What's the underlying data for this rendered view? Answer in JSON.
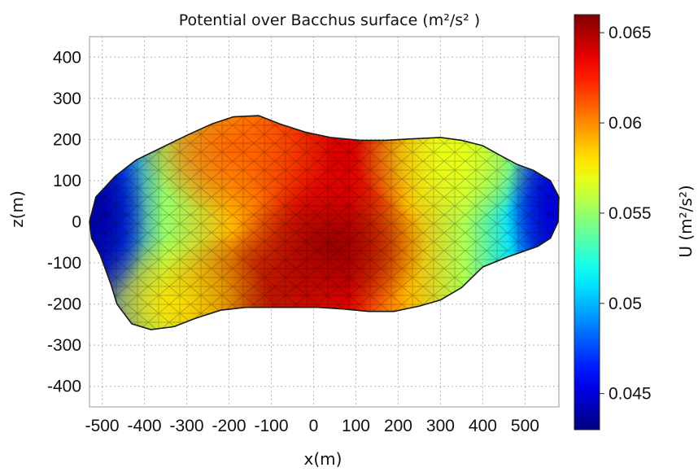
{
  "chart_data": {
    "type": "heatmap",
    "title": "Potential over Bacchus surface (m²/s² )",
    "xlabel": "x(m)",
    "ylabel": "z(m)",
    "colorbar_label": "U (m²/s²)",
    "x_ticks": [
      "-500",
      "-400",
      "-300",
      "-200",
      "-100",
      "0",
      "100",
      "200",
      "300",
      "400",
      "500"
    ],
    "y_ticks": [
      "400",
      "300",
      "200",
      "100",
      "0",
      "-100",
      "-200",
      "-300",
      "-400"
    ],
    "colorbar_ticks": [
      "0.065",
      "0.06",
      "0.055",
      "0.05",
      "0.045"
    ],
    "xlim": [
      -530,
      580
    ],
    "ylim": [
      -450,
      450
    ],
    "clim": [
      0.043,
      0.066
    ],
    "grid": true,
    "colormap": "jet",
    "outline": [
      [
        -530,
        0
      ],
      [
        -515,
        60
      ],
      [
        -470,
        110
      ],
      [
        -420,
        150
      ],
      [
        -360,
        180
      ],
      [
        -300,
        210
      ],
      [
        -240,
        238
      ],
      [
        -190,
        255
      ],
      [
        -130,
        258
      ],
      [
        -80,
        238
      ],
      [
        -20,
        218
      ],
      [
        40,
        205
      ],
      [
        110,
        198
      ],
      [
        170,
        198
      ],
      [
        240,
        202
      ],
      [
        300,
        205
      ],
      [
        350,
        198
      ],
      [
        400,
        185
      ],
      [
        440,
        162
      ],
      [
        480,
        140
      ],
      [
        520,
        125
      ],
      [
        560,
        100
      ],
      [
        580,
        60
      ],
      [
        578,
        0
      ],
      [
        560,
        -40
      ],
      [
        530,
        -60
      ],
      [
        460,
        -85
      ],
      [
        400,
        -110
      ],
      [
        350,
        -160
      ],
      [
        300,
        -190
      ],
      [
        250,
        -205
      ],
      [
        190,
        -218
      ],
      [
        130,
        -218
      ],
      [
        70,
        -212
      ],
      [
        10,
        -208
      ],
      [
        -50,
        -208
      ],
      [
        -100,
        -208
      ],
      [
        -160,
        -208
      ],
      [
        -220,
        -215
      ],
      [
        -280,
        -235
      ],
      [
        -330,
        -255
      ],
      [
        -385,
        -262
      ],
      [
        -430,
        -248
      ],
      [
        -465,
        -200
      ],
      [
        -480,
        -150
      ],
      [
        -505,
        -80
      ],
      [
        -525,
        -40
      ]
    ],
    "potential_peaks": [
      {
        "x": 40,
        "z": -60,
        "u": 0.0655
      },
      {
        "x": 60,
        "z": 160,
        "u": 0.064
      },
      {
        "x": -150,
        "z": -190,
        "u": 0.065
      },
      {
        "x": -180,
        "z": 180,
        "u": 0.061
      },
      {
        "x": -330,
        "z": -200,
        "u": 0.058
      },
      {
        "x": 330,
        "z": 160,
        "u": 0.057
      }
    ],
    "potential_lows": [
      {
        "x": -500,
        "z": 10,
        "u": 0.044
      },
      {
        "x": 560,
        "z": 30,
        "u": 0.045
      }
    ]
  }
}
